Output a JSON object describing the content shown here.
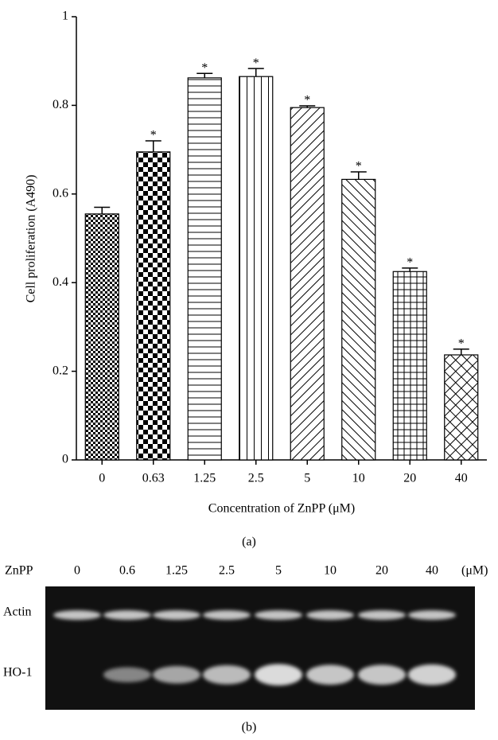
{
  "chart_data": {
    "type": "bar",
    "y_label": "Cell proliferation (A490)",
    "x_label": "Concentration of ZnPP (μM)",
    "panel_label": "(a)",
    "categories": [
      "0",
      "0.63",
      "1.25",
      "2.5",
      "5",
      "10",
      "20",
      "40"
    ],
    "values": [
      0.555,
      0.695,
      0.862,
      0.865,
      0.795,
      0.633,
      0.425,
      0.237
    ],
    "errors": [
      0.015,
      0.025,
      0.01,
      0.018,
      0.004,
      0.017,
      0.008,
      0.013
    ],
    "significance": [
      null,
      "*",
      "*",
      "*",
      "*",
      "*",
      "*",
      "*"
    ],
    "color": "#000000",
    "ylim": [
      0,
      1
    ],
    "yticks": [
      0,
      0.2,
      0.4,
      0.6,
      0.8,
      1
    ],
    "grid": false
  },
  "blot": {
    "row_title": "ZnPP",
    "unit": "(μM)",
    "lanes": [
      "0",
      "0.6",
      "1.25",
      "2.5",
      "5",
      "10",
      "20",
      "40"
    ],
    "rows": [
      "Actin",
      "HO-1"
    ],
    "panel_label": "(b)"
  }
}
